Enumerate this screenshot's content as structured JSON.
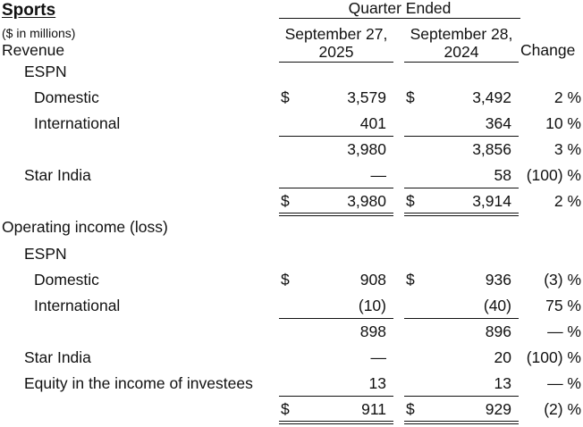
{
  "title": "Sports",
  "units": "($ in millions)",
  "header": {
    "group": "Quarter Ended",
    "col1": [
      "September 27,",
      "2025"
    ],
    "col2": [
      "September 28,",
      "2024"
    ],
    "col3": "Change"
  },
  "sections": {
    "revenue": {
      "label": "Revenue",
      "espn_label": "ESPN",
      "domestic": {
        "label": "Domestic",
        "d1": "$",
        "v1": "3,579",
        "d2": "$",
        "v2": "3,492",
        "chg": "2 %"
      },
      "international": {
        "label": "International",
        "v1": "401",
        "v2": "364",
        "chg": "10 %"
      },
      "espn_subtotal": {
        "v1": "3,980",
        "v2": "3,856",
        "chg": "3 %"
      },
      "star_india": {
        "label": "Star India",
        "v1": "—",
        "v2": "58",
        "chg": "(100) %"
      },
      "total": {
        "d1": "$",
        "v1": "3,980",
        "d2": "$",
        "v2": "3,914",
        "chg": "2 %"
      }
    },
    "operating": {
      "label": "Operating income (loss)",
      "espn_label": "ESPN",
      "domestic": {
        "label": "Domestic",
        "d1": "$",
        "v1": "908",
        "d2": "$",
        "v2": "936",
        "chg": "(3) %"
      },
      "international": {
        "label": "International",
        "v1": "(10)",
        "v2": "(40)",
        "chg": "75 %"
      },
      "espn_subtotal": {
        "v1": "898",
        "v2": "896",
        "chg": "— %"
      },
      "star_india": {
        "label": "Star India",
        "v1": "—",
        "v2": "20",
        "chg": "(100) %"
      },
      "equity": {
        "label": "Equity in the income of investees",
        "v1": "13",
        "v2": "13",
        "chg": "— %"
      },
      "total": {
        "d1": "$",
        "v1": "911",
        "d2": "$",
        "v2": "929",
        "chg": "(2) %"
      }
    }
  }
}
